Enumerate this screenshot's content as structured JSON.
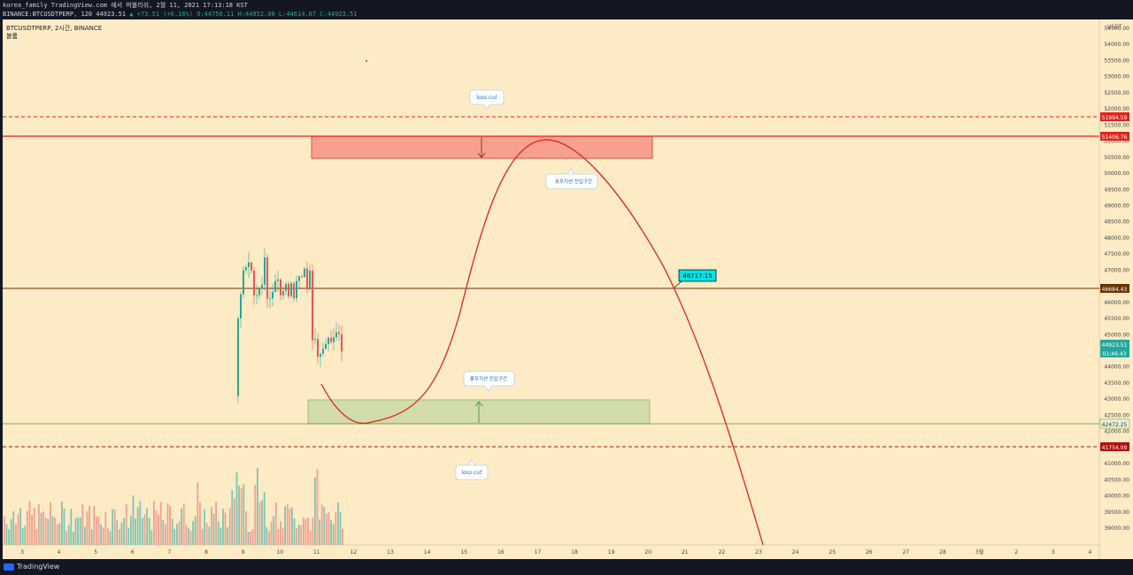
{
  "header": {
    "line1": "korea_family TradingView.com 에서 퍼블리쉬, 2월 11, 2021 17:13:18 KST",
    "symbol_full": "BINANCE:BTCUSDTPERP, 120",
    "last_price": "44923.51",
    "change": "▲ +73.51 (+0.16%)",
    "ohlc": "O:44750.11 H:44952.00 L:44614.87 C:44923.51"
  },
  "legend": {
    "title": "BTCUSDTPERP, 2시간, BINANCE",
    "indicator": "볼륨"
  },
  "price_axis": {
    "currency": "USDT",
    "ticks": [
      "54500.00",
      "54000.00",
      "53500.00",
      "53000.00",
      "52500.00",
      "52000.00",
      "51500.00",
      "51000.00",
      "50500.00",
      "50000.00",
      "49500.00",
      "49000.00",
      "48500.00",
      "48000.00",
      "47500.00",
      "47000.00",
      "46500.00",
      "46000.00",
      "45500.00",
      "45000.00",
      "44500.00",
      "44000.00",
      "43500.00",
      "43000.00",
      "42500.00",
      "42000.00",
      "41500.00",
      "41000.00",
      "40500.00",
      "40000.00",
      "39500.00",
      "39000.00"
    ],
    "labels": {
      "top_loss_cut": "51994.59",
      "resistance": "51406.76",
      "mid_line": "46684.43",
      "last": "44923.51",
      "countdown": "01:46:43",
      "support": "42472.25",
      "bottom_loss_cut": "41754.09"
    }
  },
  "time_axis": {
    "ticks": [
      "3",
      "4",
      "5",
      "6",
      "7",
      "8",
      "9",
      "10",
      "11",
      "12",
      "13",
      "14",
      "15",
      "16",
      "17",
      "18",
      "19",
      "20",
      "21",
      "22",
      "23",
      "24",
      "25",
      "26",
      "27",
      "28",
      "3월",
      "2",
      "3",
      "4"
    ]
  },
  "annotations": {
    "loss_cut_top": "loss cut",
    "loss_cut_bottom": "loss cut",
    "short_zone": "숏포지션 진입구간",
    "long_zone": "롱포지션 진입구간",
    "price_callout": "46717.15"
  },
  "colors": {
    "background": "#fdebc5",
    "red": "#e0241f",
    "green_zone": "#c7d59d",
    "red_zone": "#f7a08e",
    "brown_line": "#6b3200",
    "bull": "#26a69a",
    "bear": "#ef5350"
  },
  "chart_data": {
    "type": "candlestick",
    "candles": [
      {
        "period": "9",
        "open": 43100,
        "close": 46600
      },
      {
        "period": "10",
        "open": 46400,
        "close": 47000
      },
      {
        "period": "11",
        "open": 45600,
        "close": 44700
      }
    ],
    "horizontal_levels": [
      51994.59,
      51406.76,
      46684.43,
      42472.25,
      41754.09
    ],
    "projection_path_points": [
      [
        11.2,
        43800
      ],
      [
        12.3,
        42600
      ],
      [
        14.2,
        43200
      ],
      [
        15.2,
        47400
      ],
      [
        16.2,
        50700
      ],
      [
        17.3,
        51300
      ],
      [
        18.4,
        50400
      ],
      [
        20.4,
        46700
      ],
      [
        22.3,
        41600
      ],
      [
        23.1,
        38800
      ]
    ]
  },
  "footer": {
    "brand": "TradingView"
  }
}
